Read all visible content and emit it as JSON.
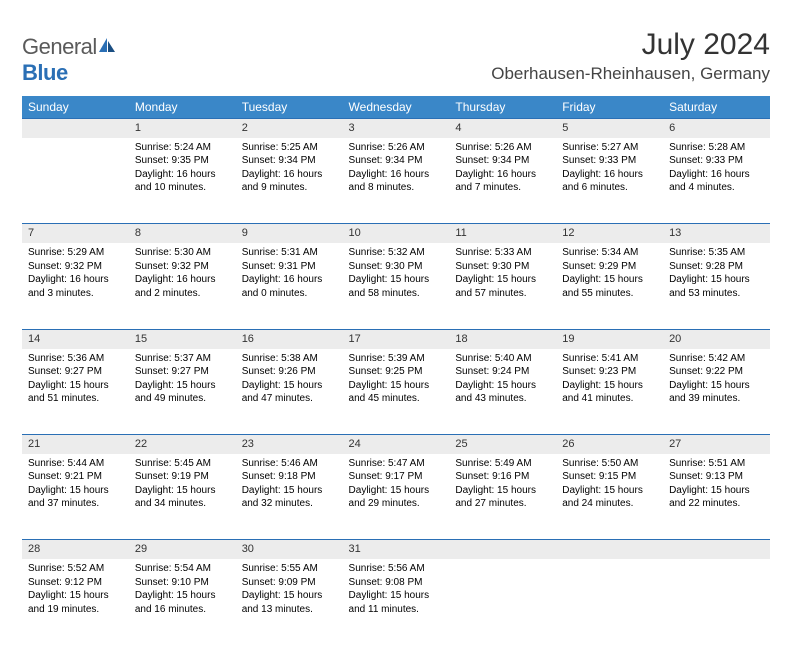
{
  "logo": {
    "word1": "General",
    "word2": "Blue"
  },
  "title": "July 2024",
  "location": "Oberhausen-Rheinhausen, Germany",
  "colors": {
    "header_bg": "#3a87c8",
    "header_text": "#ffffff",
    "row_border": "#2a6fb5",
    "daynum_bg": "#ececec",
    "logo_gray": "#5a5a5a",
    "logo_blue": "#2a6fb5"
  },
  "weekdays": [
    "Sunday",
    "Monday",
    "Tuesday",
    "Wednesday",
    "Thursday",
    "Friday",
    "Saturday"
  ],
  "weeks": [
    [
      {
        "n": "",
        "sr": "",
        "ss": "",
        "dl": ""
      },
      {
        "n": "1",
        "sr": "5:24 AM",
        "ss": "9:35 PM",
        "dl": "16 hours and 10 minutes."
      },
      {
        "n": "2",
        "sr": "5:25 AM",
        "ss": "9:34 PM",
        "dl": "16 hours and 9 minutes."
      },
      {
        "n": "3",
        "sr": "5:26 AM",
        "ss": "9:34 PM",
        "dl": "16 hours and 8 minutes."
      },
      {
        "n": "4",
        "sr": "5:26 AM",
        "ss": "9:34 PM",
        "dl": "16 hours and 7 minutes."
      },
      {
        "n": "5",
        "sr": "5:27 AM",
        "ss": "9:33 PM",
        "dl": "16 hours and 6 minutes."
      },
      {
        "n": "6",
        "sr": "5:28 AM",
        "ss": "9:33 PM",
        "dl": "16 hours and 4 minutes."
      }
    ],
    [
      {
        "n": "7",
        "sr": "5:29 AM",
        "ss": "9:32 PM",
        "dl": "16 hours and 3 minutes."
      },
      {
        "n": "8",
        "sr": "5:30 AM",
        "ss": "9:32 PM",
        "dl": "16 hours and 2 minutes."
      },
      {
        "n": "9",
        "sr": "5:31 AM",
        "ss": "9:31 PM",
        "dl": "16 hours and 0 minutes."
      },
      {
        "n": "10",
        "sr": "5:32 AM",
        "ss": "9:30 PM",
        "dl": "15 hours and 58 minutes."
      },
      {
        "n": "11",
        "sr": "5:33 AM",
        "ss": "9:30 PM",
        "dl": "15 hours and 57 minutes."
      },
      {
        "n": "12",
        "sr": "5:34 AM",
        "ss": "9:29 PM",
        "dl": "15 hours and 55 minutes."
      },
      {
        "n": "13",
        "sr": "5:35 AM",
        "ss": "9:28 PM",
        "dl": "15 hours and 53 minutes."
      }
    ],
    [
      {
        "n": "14",
        "sr": "5:36 AM",
        "ss": "9:27 PM",
        "dl": "15 hours and 51 minutes."
      },
      {
        "n": "15",
        "sr": "5:37 AM",
        "ss": "9:27 PM",
        "dl": "15 hours and 49 minutes."
      },
      {
        "n": "16",
        "sr": "5:38 AM",
        "ss": "9:26 PM",
        "dl": "15 hours and 47 minutes."
      },
      {
        "n": "17",
        "sr": "5:39 AM",
        "ss": "9:25 PM",
        "dl": "15 hours and 45 minutes."
      },
      {
        "n": "18",
        "sr": "5:40 AM",
        "ss": "9:24 PM",
        "dl": "15 hours and 43 minutes."
      },
      {
        "n": "19",
        "sr": "5:41 AM",
        "ss": "9:23 PM",
        "dl": "15 hours and 41 minutes."
      },
      {
        "n": "20",
        "sr": "5:42 AM",
        "ss": "9:22 PM",
        "dl": "15 hours and 39 minutes."
      }
    ],
    [
      {
        "n": "21",
        "sr": "5:44 AM",
        "ss": "9:21 PM",
        "dl": "15 hours and 37 minutes."
      },
      {
        "n": "22",
        "sr": "5:45 AM",
        "ss": "9:19 PM",
        "dl": "15 hours and 34 minutes."
      },
      {
        "n": "23",
        "sr": "5:46 AM",
        "ss": "9:18 PM",
        "dl": "15 hours and 32 minutes."
      },
      {
        "n": "24",
        "sr": "5:47 AM",
        "ss": "9:17 PM",
        "dl": "15 hours and 29 minutes."
      },
      {
        "n": "25",
        "sr": "5:49 AM",
        "ss": "9:16 PM",
        "dl": "15 hours and 27 minutes."
      },
      {
        "n": "26",
        "sr": "5:50 AM",
        "ss": "9:15 PM",
        "dl": "15 hours and 24 minutes."
      },
      {
        "n": "27",
        "sr": "5:51 AM",
        "ss": "9:13 PM",
        "dl": "15 hours and 22 minutes."
      }
    ],
    [
      {
        "n": "28",
        "sr": "5:52 AM",
        "ss": "9:12 PM",
        "dl": "15 hours and 19 minutes."
      },
      {
        "n": "29",
        "sr": "5:54 AM",
        "ss": "9:10 PM",
        "dl": "15 hours and 16 minutes."
      },
      {
        "n": "30",
        "sr": "5:55 AM",
        "ss": "9:09 PM",
        "dl": "15 hours and 13 minutes."
      },
      {
        "n": "31",
        "sr": "5:56 AM",
        "ss": "9:08 PM",
        "dl": "15 hours and 11 minutes."
      },
      {
        "n": "",
        "sr": "",
        "ss": "",
        "dl": ""
      },
      {
        "n": "",
        "sr": "",
        "ss": "",
        "dl": ""
      },
      {
        "n": "",
        "sr": "",
        "ss": "",
        "dl": ""
      }
    ]
  ],
  "labels": {
    "sunrise": "Sunrise:",
    "sunset": "Sunset:",
    "daylight": "Daylight:"
  }
}
